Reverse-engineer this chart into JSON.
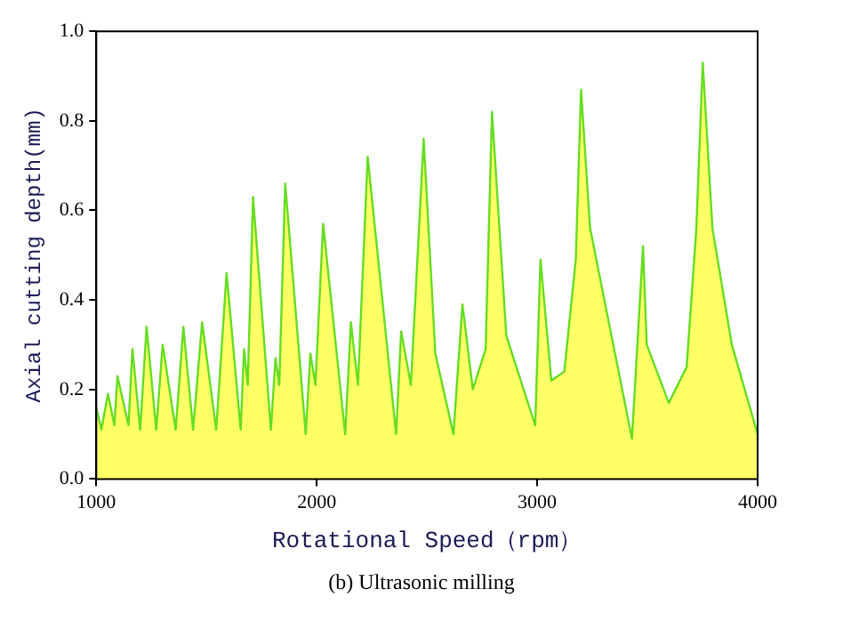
{
  "chart_data": {
    "type": "area",
    "xlabel": "Rotational Speed（rpm）",
    "ylabel": "Axial cutting depth(mm)",
    "annotations": [
      "(b) Ultrasonic milling"
    ],
    "xlim": [
      1000,
      4000
    ],
    "xticks": [
      1000,
      2000,
      3000,
      4000
    ],
    "ylim": [
      0,
      1
    ],
    "yticks": [
      {
        "value": 0,
        "label": "0.0"
      },
      {
        "value": 0.2,
        "label": "0.2"
      },
      {
        "value": 0.4,
        "label": "0.4"
      },
      {
        "value": 0.6,
        "label": "0.6"
      },
      {
        "value": 0.8,
        "label": "0.8"
      },
      {
        "value": 1,
        "label": "1.0"
      }
    ],
    "grid": false,
    "legend": false,
    "series": [
      {
        "color": "#ffff66",
        "x": [
          1000,
          1023,
          1053,
          1082,
          1096,
          1146,
          1164,
          1199,
          1228,
          1272,
          1301,
          1360,
          1395,
          1439,
          1480,
          1544,
          1591,
          1655,
          1670,
          1687,
          1711,
          1792,
          1813,
          1830,
          1857,
          1950,
          1971,
          1994,
          2029,
          2129,
          2155,
          2187,
          2231,
          2360,
          2383,
          2427,
          2485,
          2538,
          2620,
          2661,
          2708,
          2766,
          2795,
          2860,
          2991,
          3015,
          3064,
          3123,
          3175,
          3199,
          3240,
          3430,
          3480,
          3497,
          3597,
          3678,
          3722,
          3751,
          3795,
          3883,
          4000
        ],
        "values": [
          0.16,
          0.11,
          0.19,
          0.12,
          0.23,
          0.12,
          0.29,
          0.11,
          0.34,
          0.11,
          0.3,
          0.11,
          0.34,
          0.11,
          0.35,
          0.11,
          0.46,
          0.11,
          0.29,
          0.21,
          0.63,
          0.11,
          0.27,
          0.21,
          0.66,
          0.1,
          0.28,
          0.21,
          0.57,
          0.1,
          0.35,
          0.21,
          0.72,
          0.1,
          0.33,
          0.21,
          0.76,
          0.28,
          0.1,
          0.39,
          0.2,
          0.29,
          0.82,
          0.32,
          0.12,
          0.49,
          0.22,
          0.24,
          0.49,
          0.87,
          0.56,
          0.09,
          0.52,
          0.3,
          0.17,
          0.25,
          0.56,
          0.93,
          0.56,
          0.3,
          0.1
        ]
      }
    ]
  }
}
